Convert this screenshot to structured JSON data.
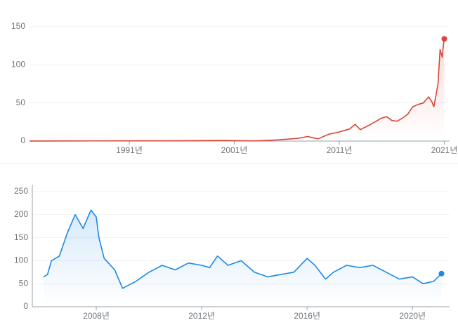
{
  "chart_data": [
    {
      "type": "line",
      "x": [
        1981.5,
        1985,
        1990,
        1995,
        2000,
        2001,
        2003,
        2005,
        2006,
        2007,
        2008,
        2008.6,
        2009,
        2010,
        2011,
        2011.5,
        2012,
        2012.5,
        2012.8,
        2013,
        2014,
        2015,
        2015.5,
        2016,
        2016.5,
        2017,
        2017.5,
        2018,
        2018.5,
        2019,
        2019.5,
        2019.8,
        2020,
        2020.2,
        2020.4,
        2020.6,
        2020.8,
        2020.9,
        2021
      ],
      "series": [
        {
          "name": null,
          "color": "#db4437",
          "values": [
            0.1,
            0.2,
            0.3,
            0.4,
            0.8,
            0.6,
            0.3,
            1.5,
            2.5,
            3.5,
            6,
            4,
            3,
            9,
            12,
            14,
            16,
            22,
            18,
            15,
            22,
            30,
            32,
            27,
            26,
            30,
            35,
            45,
            48,
            50,
            58,
            52,
            45,
            60,
            75,
            120,
            110,
            125,
            134
          ]
        }
      ],
      "xlim": [
        1981.5,
        2021.3
      ],
      "ylim": [
        0,
        150
      ],
      "xticks": [
        {
          "value": 1991,
          "label": "1991년"
        },
        {
          "value": 2001,
          "label": "2001년"
        },
        {
          "value": 2011,
          "label": "2011년"
        },
        {
          "value": 2021,
          "label": "2021년"
        }
      ],
      "yticks": [
        0,
        50,
        100,
        150
      ],
      "grid": true
    },
    {
      "type": "line",
      "x": [
        2006.0,
        2006.15,
        2006.3,
        2006.6,
        2006.9,
        2007.2,
        2007.5,
        2007.8,
        2008.0,
        2008.1,
        2008.3,
        2008.7,
        2009.0,
        2009.5,
        2010.0,
        2010.5,
        2011.0,
        2011.5,
        2012.0,
        2012.3,
        2012.6,
        2013.0,
        2013.5,
        2014.0,
        2014.5,
        2015.0,
        2015.5,
        2016.0,
        2016.3,
        2016.7,
        2017.0,
        2017.5,
        2018.0,
        2018.5,
        2019.0,
        2019.5,
        2020.0,
        2020.4,
        2020.8,
        2021.1
      ],
      "series": [
        {
          "name": null,
          "color": "#1e88e5",
          "values": [
            65,
            70,
            100,
            110,
            160,
            200,
            170,
            210,
            195,
            150,
            105,
            80,
            40,
            55,
            75,
            90,
            80,
            95,
            90,
            85,
            110,
            90,
            100,
            75,
            65,
            70,
            75,
            105,
            90,
            60,
            75,
            90,
            85,
            90,
            75,
            60,
            65,
            50,
            55,
            72
          ]
        }
      ],
      "xlim": [
        2006.0,
        2021.3
      ],
      "ylim": [
        0,
        250
      ],
      "xticks": [
        {
          "value": 2008,
          "label": "2008년"
        },
        {
          "value": 2012,
          "label": "2012년"
        },
        {
          "value": 2016,
          "label": "2016년"
        },
        {
          "value": 2020,
          "label": "2020년"
        }
      ],
      "yticks": [
        0,
        50,
        100,
        150,
        200,
        250
      ],
      "grid": true
    }
  ]
}
